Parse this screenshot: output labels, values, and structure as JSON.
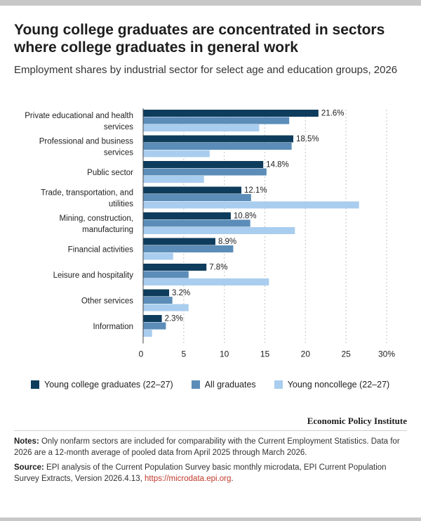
{
  "title": "Young college graduates are concentrated in sectors where college graduates in general work",
  "subtitle": "Employment shares by industrial sector for select age and education groups, 2026",
  "brand": "Economic Policy Institute",
  "notes": {
    "notes_label": "Notes:",
    "notes_text": " Only nonfarm sectors are included for comparability with the Current Employment Statistics. Data for 2026 are a 12-month average of pooled data from April 2025 through March 2026.",
    "source_label": "Source:",
    "source_text": " EPI analysis of the Current Population Survey basic monthly microdata, EPI Current Population Survey Extracts, Version 2026.4.13, ",
    "source_link": "https://microdata.epi.org",
    "source_end": "."
  },
  "colors": {
    "young_grads": "#0e3c5c",
    "all_grads": "#5b8db8",
    "young_noncollege": "#a9cdee",
    "grid": "#cccccc"
  },
  "chart_data": {
    "type": "bar",
    "orientation": "horizontal",
    "categories": [
      [
        "Private educational and health",
        "services"
      ],
      [
        "Professional and business",
        "services"
      ],
      [
        "Public sector"
      ],
      [
        "Trade, transportation, and",
        "utilities"
      ],
      [
        "Mining, construction,",
        "manufacturing"
      ],
      [
        "Financial activities"
      ],
      [
        "Leisure and hospitality"
      ],
      [
        "Other services"
      ],
      [
        "Information"
      ]
    ],
    "series": [
      {
        "name": "Young college graduates (22–27)",
        "values": [
          21.6,
          18.5,
          14.8,
          12.1,
          10.8,
          8.9,
          7.8,
          3.2,
          2.3
        ],
        "labels": [
          "21.6%",
          "18.5%",
          "14.8%",
          "12.1%",
          "10.8%",
          "8.9%",
          "7.8%",
          "3.2%",
          "2.3%"
        ]
      },
      {
        "name": "All graduates",
        "values": [
          18.0,
          18.3,
          15.2,
          13.3,
          13.2,
          11.1,
          5.6,
          3.6,
          2.8
        ]
      },
      {
        "name": "Young noncollege (22–27)",
        "values": [
          14.3,
          8.2,
          7.5,
          26.6,
          18.7,
          3.7,
          15.5,
          5.6,
          1.1
        ]
      }
    ],
    "xticks": [
      "0",
      "5",
      "10",
      "15",
      "20",
      "25",
      "30%"
    ],
    "xlim": [
      0,
      30
    ],
    "grid": true
  }
}
